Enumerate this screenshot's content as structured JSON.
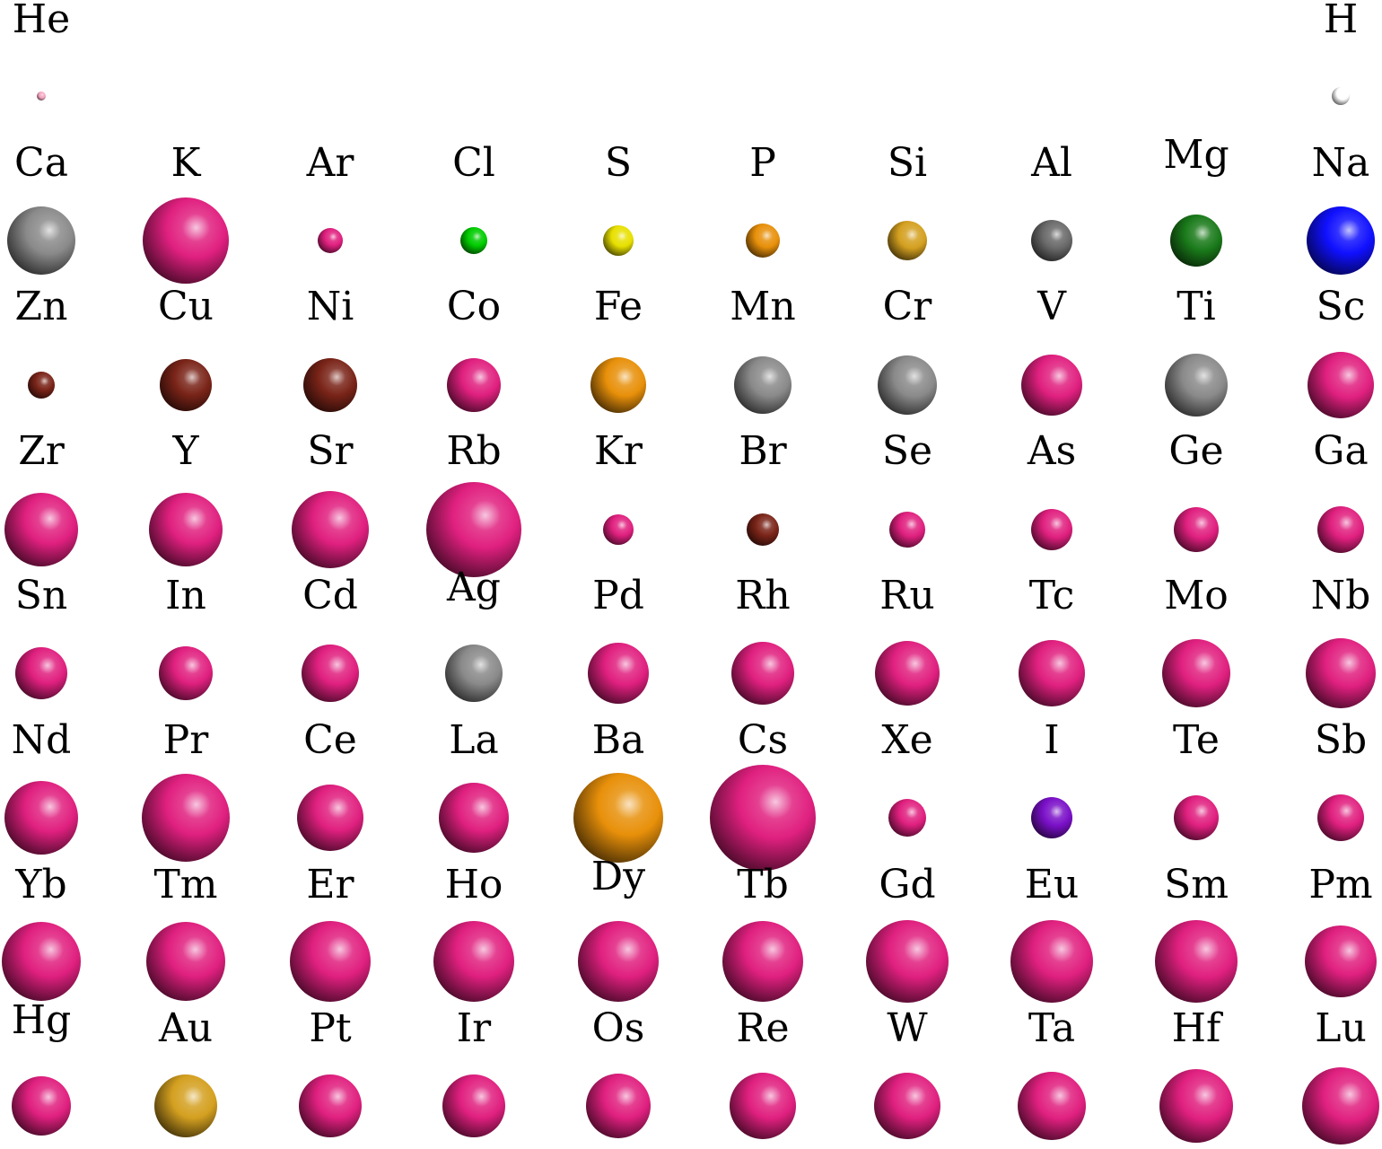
{
  "colors": {
    "magenta": "#e0207f",
    "gray": "#8a8a8a",
    "white": "#ffffff",
    "pink": "#f7a8c4",
    "green": "#00cc00",
    "yellow": "#e8e000",
    "orange": "#e8900a",
    "gold": "#d4a020",
    "darkgray": "#6a6a6a",
    "darkgreen": "#1a7a1a",
    "blue": "#1010ff",
    "brown": "#7a2418",
    "purple": "#7a10c8"
  },
  "rows": [
    [
      {
        "symbol": "He",
        "color": "pink"
      },
      null,
      null,
      null,
      null,
      null,
      null,
      null,
      null,
      {
        "symbol": "H",
        "color": "white"
      }
    ],
    [
      {
        "symbol": "Ca",
        "color": "gray"
      },
      {
        "symbol": "K",
        "color": "magenta"
      },
      {
        "symbol": "Ar",
        "color": "magenta"
      },
      {
        "symbol": "Cl",
        "color": "green"
      },
      {
        "symbol": "S",
        "color": "yellow"
      },
      {
        "symbol": "P",
        "color": "orange"
      },
      {
        "symbol": "Si",
        "color": "gold"
      },
      {
        "symbol": "Al",
        "color": "darkgray"
      },
      {
        "symbol": "Mg",
        "color": "darkgreen"
      },
      {
        "symbol": "Na",
        "color": "blue"
      }
    ],
    [
      {
        "symbol": "Zn",
        "color": "brown"
      },
      {
        "symbol": "Cu",
        "color": "brown"
      },
      {
        "symbol": "Ni",
        "color": "brown"
      },
      {
        "symbol": "Co",
        "color": "magenta"
      },
      {
        "symbol": "Fe",
        "color": "orange"
      },
      {
        "symbol": "Mn",
        "color": "gray"
      },
      {
        "symbol": "Cr",
        "color": "gray"
      },
      {
        "symbol": "V",
        "color": "magenta"
      },
      {
        "symbol": "Ti",
        "color": "gray"
      },
      {
        "symbol": "Sc",
        "color": "magenta"
      }
    ],
    [
      {
        "symbol": "Zr",
        "color": "magenta"
      },
      {
        "symbol": "Y",
        "color": "magenta"
      },
      {
        "symbol": "Sr",
        "color": "magenta"
      },
      {
        "symbol": "Rb",
        "color": "magenta"
      },
      {
        "symbol": "Kr",
        "color": "magenta"
      },
      {
        "symbol": "Br",
        "color": "brown"
      },
      {
        "symbol": "Se",
        "color": "magenta"
      },
      {
        "symbol": "As",
        "color": "magenta"
      },
      {
        "symbol": "Ge",
        "color": "magenta"
      },
      {
        "symbol": "Ga",
        "color": "magenta"
      }
    ],
    [
      {
        "symbol": "Sn",
        "color": "magenta"
      },
      {
        "symbol": "In",
        "color": "magenta"
      },
      {
        "symbol": "Cd",
        "color": "magenta"
      },
      {
        "symbol": "Ag",
        "color": "gray"
      },
      {
        "symbol": "Pd",
        "color": "magenta"
      },
      {
        "symbol": "Rh",
        "color": "magenta"
      },
      {
        "symbol": "Ru",
        "color": "magenta"
      },
      {
        "symbol": "Tc",
        "color": "magenta"
      },
      {
        "symbol": "Mo",
        "color": "magenta"
      },
      {
        "symbol": "Nb",
        "color": "magenta"
      }
    ],
    [
      {
        "symbol": "Nd",
        "color": "magenta"
      },
      {
        "symbol": "Pr",
        "color": "magenta"
      },
      {
        "symbol": "Ce",
        "color": "magenta"
      },
      {
        "symbol": "La",
        "color": "magenta"
      },
      {
        "symbol": "Ba",
        "color": "orange"
      },
      {
        "symbol": "Cs",
        "color": "magenta"
      },
      {
        "symbol": "Xe",
        "color": "magenta"
      },
      {
        "symbol": "I",
        "color": "purple"
      },
      {
        "symbol": "Te",
        "color": "magenta"
      },
      {
        "symbol": "Sb",
        "color": "magenta"
      }
    ],
    [
      {
        "symbol": "Yb",
        "color": "magenta"
      },
      {
        "symbol": "Tm",
        "color": "magenta"
      },
      {
        "symbol": "Er",
        "color": "magenta"
      },
      {
        "symbol": "Ho",
        "color": "magenta"
      },
      {
        "symbol": "Dy",
        "color": "magenta"
      },
      {
        "symbol": "Tb",
        "color": "magenta"
      },
      {
        "symbol": "Gd",
        "color": "magenta"
      },
      {
        "symbol": "Eu",
        "color": "magenta"
      },
      {
        "symbol": "Sm",
        "color": "magenta"
      },
      {
        "symbol": "Pm",
        "color": "magenta"
      }
    ],
    [
      {
        "symbol": "Hg",
        "color": "magenta"
      },
      {
        "symbol": "Au",
        "color": "gold"
      },
      {
        "symbol": "Pt",
        "color": "magenta"
      },
      {
        "symbol": "Ir",
        "color": "magenta"
      },
      {
        "symbol": "Os",
        "color": "magenta"
      },
      {
        "symbol": "Re",
        "color": "magenta"
      },
      {
        "symbol": "W",
        "color": "magenta"
      },
      {
        "symbol": "Ta",
        "color": "magenta"
      },
      {
        "symbol": "Hf",
        "color": "magenta"
      },
      {
        "symbol": "Lu",
        "color": "magenta"
      }
    ]
  ]
}
